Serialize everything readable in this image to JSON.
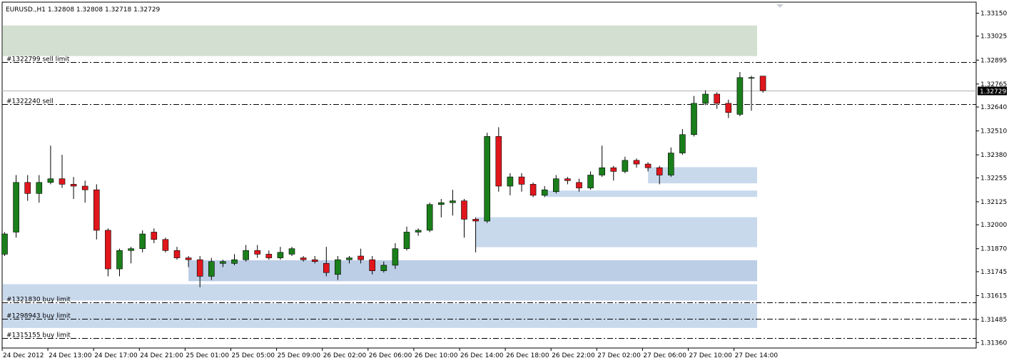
{
  "header": {
    "text": "EURUSD.,H1  1.32808 1.32808 1.32718 1.32729"
  },
  "colors": {
    "bull": "#1a7f1a",
    "bear": "#e0161c",
    "candle_border": "#000000",
    "sell_zone": "#d3dfd0",
    "buy_zone_light": "#c9d9ec",
    "buy_zone_dark": "#bccde6",
    "order_line": "#000000",
    "current_price_bg": "#000000"
  },
  "chart_data": {
    "type": "candlestick",
    "symbol": "EURUSD.",
    "timeframe": "H1",
    "ylim": [
      1.3133,
      1.3321
    ],
    "y_ticks": [
      "1.31360",
      "1.31485",
      "1.31615",
      "1.31745",
      "1.31870",
      "1.32000",
      "1.32125",
      "1.32255",
      "1.32380",
      "1.32510",
      "1.32640",
      "1.32765",
      "1.32895",
      "1.33025",
      "1.33150"
    ],
    "x_labels": [
      "24 Dec 2012",
      "24 Dec 13:00",
      "24 Dec 17:00",
      "24 Dec 21:00",
      "25 Dec 01:00",
      "25 Dec 05:00",
      "25 Dec 09:00",
      "26 Dec 02:00",
      "26 Dec 06:00",
      "26 Dec 10:00",
      "26 Dec 14:00",
      "26 Dec 18:00",
      "26 Dec 22:00",
      "27 Dec 02:00",
      "27 Dec 06:00",
      "27 Dec 10:00",
      "27 Dec 14:00"
    ],
    "current_price": "1.32729",
    "candles": [
      {
        "o": 1.3184,
        "h": 1.3196,
        "l": 1.3183,
        "c": 1.3195
      },
      {
        "o": 1.3196,
        "h": 1.3227,
        "l": 1.3193,
        "c": 1.3223
      },
      {
        "o": 1.3223,
        "h": 1.3227,
        "l": 1.3213,
        "c": 1.3217
      },
      {
        "o": 1.3217,
        "h": 1.3227,
        "l": 1.3212,
        "c": 1.3223
      },
      {
        "o": 1.3223,
        "h": 1.3243,
        "l": 1.3222,
        "c": 1.3225
      },
      {
        "o": 1.3225,
        "h": 1.3238,
        "l": 1.322,
        "c": 1.3222
      },
      {
        "o": 1.3222,
        "h": 1.3226,
        "l": 1.3214,
        "c": 1.3221
      },
      {
        "o": 1.3221,
        "h": 1.3224,
        "l": 1.3212,
        "c": 1.3219
      },
      {
        "o": 1.3219,
        "h": 1.3222,
        "l": 1.3192,
        "c": 1.3197
      },
      {
        "o": 1.3197,
        "h": 1.3198,
        "l": 1.3172,
        "c": 1.3176
      },
      {
        "o": 1.3176,
        "h": 1.3187,
        "l": 1.3172,
        "c": 1.3186
      },
      {
        "o": 1.3186,
        "h": 1.3188,
        "l": 1.3179,
        "c": 1.3187
      },
      {
        "o": 1.3187,
        "h": 1.3197,
        "l": 1.3185,
        "c": 1.3195
      },
      {
        "o": 1.3196,
        "h": 1.3198,
        "l": 1.319,
        "c": 1.3192
      },
      {
        "o": 1.3192,
        "h": 1.3193,
        "l": 1.3185,
        "c": 1.3186
      },
      {
        "o": 1.3186,
        "h": 1.3188,
        "l": 1.3181,
        "c": 1.3182
      },
      {
        "o": 1.3182,
        "h": 1.3183,
        "l": 1.3177,
        "c": 1.3181
      },
      {
        "o": 1.3181,
        "h": 1.3183,
        "l": 1.3166,
        "c": 1.3172
      },
      {
        "o": 1.3172,
        "h": 1.3182,
        "l": 1.317,
        "c": 1.318
      },
      {
        "o": 1.3179,
        "h": 1.3181,
        "l": 1.3177,
        "c": 1.318
      },
      {
        "o": 1.3179,
        "h": 1.3184,
        "l": 1.3178,
        "c": 1.3181
      },
      {
        "o": 1.3181,
        "h": 1.3189,
        "l": 1.318,
        "c": 1.3186
      },
      {
        "o": 1.3186,
        "h": 1.3189,
        "l": 1.3182,
        "c": 1.3184
      },
      {
        "o": 1.3184,
        "h": 1.3186,
        "l": 1.3181,
        "c": 1.3182
      },
      {
        "o": 1.3182,
        "h": 1.3188,
        "l": 1.3181,
        "c": 1.3185
      },
      {
        "o": 1.3184,
        "h": 1.3188,
        "l": 1.3183,
        "c": 1.3187
      },
      {
        "o": 1.3182,
        "h": 1.3183,
        "l": 1.318,
        "c": 1.3181
      },
      {
        "o": 1.3181,
        "h": 1.3183,
        "l": 1.3179,
        "c": 1.318
      },
      {
        "o": 1.3179,
        "h": 1.3188,
        "l": 1.3172,
        "c": 1.3174
      },
      {
        "o": 1.3173,
        "h": 1.3183,
        "l": 1.317,
        "c": 1.3181
      },
      {
        "o": 1.3181,
        "h": 1.3183,
        "l": 1.3179,
        "c": 1.3182
      },
      {
        "o": 1.3183,
        "h": 1.3187,
        "l": 1.3179,
        "c": 1.3181
      },
      {
        "o": 1.3181,
        "h": 1.3183,
        "l": 1.3173,
        "c": 1.3175
      },
      {
        "o": 1.3175,
        "h": 1.318,
        "l": 1.3174,
        "c": 1.3178
      },
      {
        "o": 1.3178,
        "h": 1.319,
        "l": 1.3176,
        "c": 1.3187
      },
      {
        "o": 1.3187,
        "h": 1.3199,
        "l": 1.3186,
        "c": 1.3196
      },
      {
        "o": 1.3196,
        "h": 1.3198,
        "l": 1.3194,
        "c": 1.3197
      },
      {
        "o": 1.3197,
        "h": 1.3212,
        "l": 1.3196,
        "c": 1.3211
      },
      {
        "o": 1.3211,
        "h": 1.3214,
        "l": 1.3204,
        "c": 1.3212
      },
      {
        "o": 1.3212,
        "h": 1.3219,
        "l": 1.3205,
        "c": 1.3213
      },
      {
        "o": 1.3213,
        "h": 1.3214,
        "l": 1.3193,
        "c": 1.3203
      },
      {
        "o": 1.3203,
        "h": 1.3204,
        "l": 1.3185,
        "c": 1.3202
      },
      {
        "o": 1.3202,
        "h": 1.325,
        "l": 1.3201,
        "c": 1.3248
      },
      {
        "o": 1.3248,
        "h": 1.3253,
        "l": 1.3218,
        "c": 1.3221
      },
      {
        "o": 1.3221,
        "h": 1.3228,
        "l": 1.3216,
        "c": 1.3226
      },
      {
        "o": 1.3226,
        "h": 1.3228,
        "l": 1.3218,
        "c": 1.3222
      },
      {
        "o": 1.3222,
        "h": 1.3223,
        "l": 1.3215,
        "c": 1.3216
      },
      {
        "o": 1.3216,
        "h": 1.3221,
        "l": 1.3215,
        "c": 1.3219
      },
      {
        "o": 1.3218,
        "h": 1.3227,
        "l": 1.3217,
        "c": 1.3225
      },
      {
        "o": 1.3225,
        "h": 1.3226,
        "l": 1.3222,
        "c": 1.3224
      },
      {
        "o": 1.3223,
        "h": 1.3225,
        "l": 1.3218,
        "c": 1.322
      },
      {
        "o": 1.322,
        "h": 1.3229,
        "l": 1.3219,
        "c": 1.3227
      },
      {
        "o": 1.3227,
        "h": 1.3243,
        "l": 1.3226,
        "c": 1.3231
      },
      {
        "o": 1.3231,
        "h": 1.3232,
        "l": 1.3224,
        "c": 1.3229
      },
      {
        "o": 1.3229,
        "h": 1.3237,
        "l": 1.3228,
        "c": 1.3235
      },
      {
        "o": 1.3235,
        "h": 1.3236,
        "l": 1.3231,
        "c": 1.3233
      },
      {
        "o": 1.3233,
        "h": 1.3234,
        "l": 1.3229,
        "c": 1.3231
      },
      {
        "o": 1.3231,
        "h": 1.3232,
        "l": 1.3222,
        "c": 1.3227
      },
      {
        "o": 1.3227,
        "h": 1.3242,
        "l": 1.3226,
        "c": 1.3239
      },
      {
        "o": 1.3239,
        "h": 1.3252,
        "l": 1.3238,
        "c": 1.3249
      },
      {
        "o": 1.3249,
        "h": 1.327,
        "l": 1.3248,
        "c": 1.3266
      },
      {
        "o": 1.3266,
        "h": 1.3273,
        "l": 1.3265,
        "c": 1.3271
      },
      {
        "o": 1.3271,
        "h": 1.3272,
        "l": 1.3263,
        "c": 1.3266
      },
      {
        "o": 1.3266,
        "h": 1.3268,
        "l": 1.3258,
        "c": 1.3261
      },
      {
        "o": 1.326,
        "h": 1.3283,
        "l": 1.3259,
        "c": 1.328
      },
      {
        "o": 1.328,
        "h": 1.3281,
        "l": 1.3262,
        "c": 1.328
      },
      {
        "o": 1.32808,
        "h": 1.32808,
        "l": 1.32718,
        "c": 1.32729
      }
    ],
    "zones": [
      {
        "type": "sell",
        "from_index": -0.5,
        "to_index": 65.5,
        "y1": 1.33083,
        "y2": 1.32917
      },
      {
        "type": "buy",
        "from_index": 56,
        "to_index": 65.5,
        "y1": 1.32313,
        "y2": 1.32225
      },
      {
        "type": "buy",
        "from_index": 47,
        "to_index": 65.5,
        "y1": 1.32186,
        "y2": 1.32151
      },
      {
        "type": "buy",
        "from_index": 41,
        "to_index": 65.5,
        "y1": 1.32041,
        "y2": 1.31878
      },
      {
        "type": "buy",
        "from_index": 16,
        "to_index": 65.5,
        "y1": 1.31807,
        "y2": 1.31693
      },
      {
        "type": "buy",
        "from_index": -0.5,
        "to_index": 65.5,
        "y1": 1.31677,
        "y2": 1.31588
      },
      {
        "type": "buy",
        "from_index": -0.5,
        "to_index": 65.5,
        "y1": 1.31572,
        "y2": 1.31439
      }
    ],
    "orders": [
      {
        "label": "#1322799 sell limit",
        "price": 1.32886
      },
      {
        "label": "#1322240 sell",
        "price": 1.32656
      },
      {
        "label": "#1321830 buy limit",
        "price": 1.3158
      },
      {
        "label": "#1298943 buy limit",
        "price": 1.31488
      },
      {
        "label": "#1315155 buy limit",
        "price": 1.31385
      }
    ]
  }
}
